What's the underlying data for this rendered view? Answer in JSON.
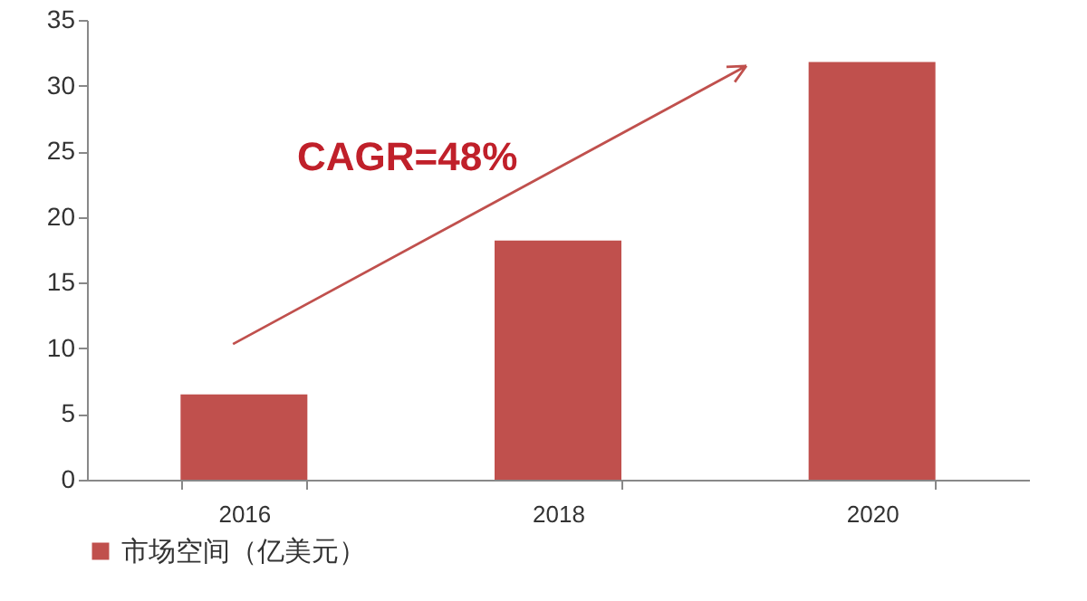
{
  "chart_data": {
    "type": "bar",
    "categories": [
      "2016",
      "2018",
      "2020"
    ],
    "series": [
      {
        "name": "市场空间（亿美元）",
        "color": "#c0504d",
        "values": [
          6.5,
          18.2,
          31.8
        ]
      }
    ],
    "ylim": [
      0,
      35
    ],
    "yticks": [
      0,
      5,
      10,
      15,
      20,
      25,
      30,
      35
    ],
    "grid": false,
    "legend": "bottom",
    "annotations": [
      "CAGR=48%"
    ]
  }
}
